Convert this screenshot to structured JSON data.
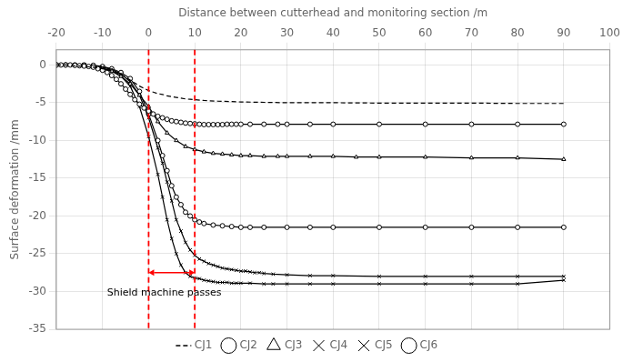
{
  "chart_data": {
    "type": "line",
    "xlabel": "Distance between cutterhead and monitoring section /m",
    "ylabel": "Surface deformation /mm",
    "xlim": [
      -20,
      100
    ],
    "ylim": [
      -35,
      2
    ],
    "xticks": [
      -20,
      -10,
      0,
      10,
      20,
      30,
      40,
      50,
      60,
      70,
      80,
      90,
      100
    ],
    "yticks": [
      0,
      -5,
      -10,
      -15,
      -20,
      -25,
      -30,
      -35
    ],
    "grid": true,
    "legend": "bottom",
    "vlines": [
      {
        "x": 0,
        "color": "red",
        "line_style": "dashed"
      },
      {
        "x": 10,
        "color": "red",
        "line_style": "dashed"
      }
    ],
    "arrow": {
      "x": [
        0,
        10
      ],
      "y": -27.5,
      "color": "red"
    },
    "annotations": [
      {
        "text": "Shield machine passes",
        "x": -9,
        "y": -30.5
      }
    ],
    "series": [
      {
        "name": "CJ1",
        "color": "#000000",
        "marker": "none",
        "line_style": "dashed",
        "x": [
          -20,
          -19,
          -18,
          -17,
          -16,
          -15,
          -14,
          -13,
          -12,
          -11,
          -10,
          -9,
          -8,
          -7,
          -6,
          -5,
          -4,
          -3,
          -2,
          -1,
          0,
          1,
          2,
          3,
          4,
          5,
          6,
          7,
          8,
          9,
          10,
          12,
          15,
          18,
          20,
          25,
          30,
          35,
          40,
          50,
          60,
          70,
          80,
          90
        ],
        "values": [
          0,
          0,
          0,
          -0.05,
          -0.1,
          -0.15,
          -0.2,
          -0.25,
          -0.3,
          -0.4,
          -0.5,
          -0.6,
          -0.8,
          -1.0,
          -1.3,
          -1.6,
          -2.0,
          -2.4,
          -2.8,
          -3.1,
          -3.4,
          -3.6,
          -3.8,
          -3.9,
          -4.1,
          -4.2,
          -4.3,
          -4.4,
          -4.5,
          -4.55,
          -4.6,
          -4.7,
          -4.8,
          -4.85,
          -4.9,
          -4.95,
          -5.0,
          -5.0,
          -5.0,
          -5.05,
          -5.05,
          -5.05,
          -5.1,
          -5.1
        ]
      },
      {
        "name": "CJ2",
        "color": "#000000",
        "marker": "circle",
        "line_style": "solid",
        "x": [
          -20,
          -19,
          -18,
          -17,
          -16,
          -15,
          -14,
          -13,
          -12,
          -11,
          -10,
          -9,
          -8,
          -7,
          -6,
          -5,
          -4,
          -3,
          -2,
          -1,
          0,
          1,
          2,
          3,
          4,
          5,
          6,
          7,
          8,
          9,
          10,
          11,
          12,
          13,
          14,
          15,
          16,
          17,
          18,
          19,
          20,
          22,
          25,
          28,
          30,
          35,
          40,
          50,
          60,
          70,
          80,
          90
        ],
        "values": [
          0,
          0,
          0,
          0,
          -0.05,
          -0.1,
          -0.15,
          -0.2,
          -0.3,
          -0.5,
          -0.7,
          -1.0,
          -1.4,
          -1.9,
          -2.5,
          -3.2,
          -3.9,
          -4.6,
          -5.2,
          -5.7,
          -6.1,
          -6.5,
          -6.8,
          -7.0,
          -7.2,
          -7.4,
          -7.5,
          -7.6,
          -7.7,
          -7.75,
          -7.8,
          -7.85,
          -7.9,
          -7.9,
          -7.9,
          -7.9,
          -7.9,
          -7.85,
          -7.85,
          -7.85,
          -7.85,
          -7.85,
          -7.85,
          -7.85,
          -7.85,
          -7.85,
          -7.85,
          -7.85,
          -7.85,
          -7.85,
          -7.85,
          -7.85
        ]
      },
      {
        "name": "CJ3",
        "color": "#000000",
        "marker": "triangle",
        "line_style": "solid",
        "x": [
          -20,
          -18,
          -16,
          -14,
          -12,
          -10,
          -8,
          -6,
          -4,
          -2,
          0,
          2,
          4,
          6,
          8,
          10,
          12,
          14,
          16,
          18,
          20,
          22,
          25,
          28,
          30,
          35,
          40,
          45,
          50,
          60,
          70,
          80,
          90
        ],
        "values": [
          0,
          0,
          0,
          -0.1,
          -0.3,
          -0.5,
          -0.8,
          -1.5,
          -2.5,
          -4.0,
          -5.5,
          -7.5,
          -9.0,
          -10.0,
          -10.8,
          -11.2,
          -11.5,
          -11.7,
          -11.8,
          -11.9,
          -12.0,
          -12.0,
          -12.1,
          -12.1,
          -12.1,
          -12.1,
          -12.1,
          -12.2,
          -12.2,
          -12.2,
          -12.3,
          -12.3,
          -12.5
        ]
      },
      {
        "name": "CJ4",
        "color": "#000000",
        "marker": "x",
        "line_style": "solid",
        "x": [
          -20,
          -18,
          -16,
          -14,
          -12,
          -10,
          -8,
          -6,
          -4,
          -2,
          0,
          2,
          3,
          4,
          5,
          6,
          7,
          8,
          9,
          10,
          11,
          12,
          13,
          14,
          15,
          16,
          17,
          18,
          19,
          20,
          21,
          22,
          23,
          24,
          25,
          27,
          30,
          35,
          40,
          50,
          60,
          70,
          80,
          90
        ],
        "values": [
          0,
          0,
          0,
          0,
          -0.1,
          -0.3,
          -0.6,
          -1.2,
          -2.2,
          -4.0,
          -7.0,
          -11.0,
          -13.0,
          -15.5,
          -18.0,
          -20.5,
          -22.0,
          -23.5,
          -24.5,
          -25.2,
          -25.7,
          -26.0,
          -26.3,
          -26.5,
          -26.7,
          -26.9,
          -27.0,
          -27.1,
          -27.2,
          -27.3,
          -27.3,
          -27.4,
          -27.5,
          -27.5,
          -27.6,
          -27.7,
          -27.8,
          -27.9,
          -27.9,
          -28.0,
          -28.0,
          -28.0,
          -28.0,
          -28.0
        ]
      },
      {
        "name": "CJ5",
        "color": "#000000",
        "marker": "x",
        "line_style": "solid",
        "x": [
          -20,
          -18,
          -16,
          -14,
          -12,
          -10,
          -8,
          -6,
          -4,
          -2,
          0,
          2,
          3,
          4,
          5,
          6,
          7,
          8,
          9,
          10,
          11,
          12,
          13,
          14,
          15,
          16,
          17,
          18,
          19,
          20,
          22,
          25,
          27,
          30,
          35,
          40,
          50,
          60,
          70,
          80,
          90
        ],
        "values": [
          0,
          0,
          0,
          0,
          -0.1,
          -0.4,
          -0.8,
          -1.5,
          -2.8,
          -5.5,
          -9.5,
          -14.5,
          -17.5,
          -20.5,
          -23.0,
          -25.0,
          -26.5,
          -27.5,
          -28.0,
          -28.2,
          -28.3,
          -28.5,
          -28.6,
          -28.7,
          -28.8,
          -28.8,
          -28.8,
          -28.9,
          -28.9,
          -28.9,
          -28.9,
          -29.0,
          -29.0,
          -29.0,
          -29.0,
          -29.0,
          -29.0,
          -29.0,
          -29.0,
          -29.0,
          -28.5
        ]
      },
      {
        "name": "CJ6",
        "color": "#000000",
        "marker": "circle",
        "line_style": "solid",
        "x": [
          -20,
          -18,
          -16,
          -14,
          -12,
          -10,
          -8,
          -6,
          -4,
          -2,
          0,
          2,
          3,
          4,
          5,
          6,
          7,
          8,
          9,
          10,
          11,
          12,
          14,
          16,
          18,
          20,
          22,
          25,
          30,
          35,
          40,
          50,
          60,
          70,
          80,
          90
        ],
        "values": [
          0,
          0,
          0,
          0,
          -0.05,
          -0.2,
          -0.5,
          -1.0,
          -1.8,
          -3.5,
          -6.5,
          -10.0,
          -12.0,
          -14.0,
          -16.0,
          -17.5,
          -18.5,
          -19.5,
          -20.0,
          -20.5,
          -20.8,
          -21.0,
          -21.2,
          -21.3,
          -21.4,
          -21.5,
          -21.5,
          -21.5,
          -21.5,
          -21.5,
          -21.5,
          -21.5,
          -21.5,
          -21.5,
          -21.5,
          -21.5
        ]
      }
    ]
  }
}
